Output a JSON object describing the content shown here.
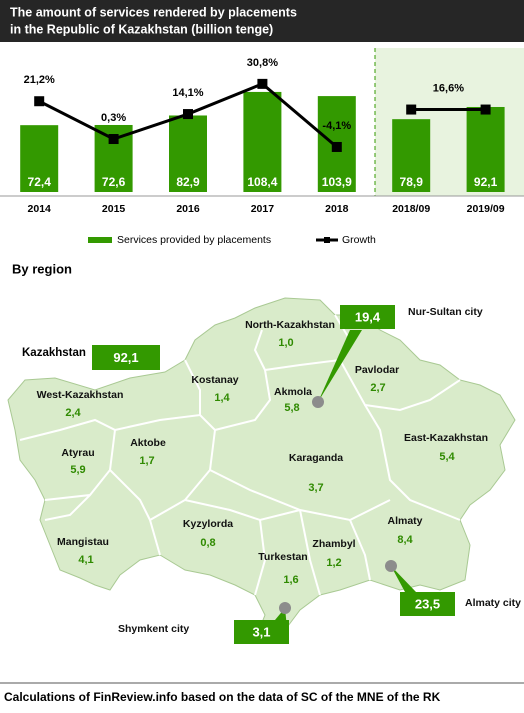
{
  "chart_data": {
    "type": "bar",
    "title": "The amount of services rendered by placements",
    "subtitle": "in the Republic of Kazakhstan (billion tenge)",
    "categories": [
      "2014",
      "2015",
      "2016",
      "2017",
      "2018",
      "2018/09",
      "2019/09"
    ],
    "ylim": [
      0,
      143
    ],
    "y2lim": [
      -29,
      44
    ],
    "series": [
      {
        "name": "Services provided by placements",
        "type": "bar",
        "color": "#339900",
        "values": [
          72.4,
          72.6,
          82.9,
          108.4,
          103.9,
          78.9,
          92.1
        ],
        "value_labels": [
          "72,4",
          "72,6",
          "82,9",
          "108,4",
          "103,9",
          "78,9",
          "92,1"
        ]
      },
      {
        "name": "Growth",
        "type": "line",
        "axis": "y2",
        "color": "#000000",
        "values": [
          21.2,
          0.3,
          14.1,
          30.8,
          -4.1,
          16.6,
          16.6
        ],
        "value_labels": [
          "21,2%",
          "0,3%",
          "14,1%",
          "30,8%",
          "-4,1%",
          null,
          "16,6%"
        ]
      }
    ]
  },
  "map": {
    "title": "By region",
    "total": {
      "name": "Kazakhstan",
      "value": "92,1"
    },
    "regions": [
      {
        "name": "North-Kazakhstan",
        "value": "1,0"
      },
      {
        "name": "Kostanay",
        "value": "1,4"
      },
      {
        "name": "Akmola",
        "value": "5,8"
      },
      {
        "name": "Pavlodar",
        "value": "2,7"
      },
      {
        "name": "West-Kazakhstan",
        "value": "2,4"
      },
      {
        "name": "Aktobe",
        "value": "1,7"
      },
      {
        "name": "Karaganda",
        "value": "3,7"
      },
      {
        "name": "East-Kazakhstan",
        "value": "5,4"
      },
      {
        "name": "Atyrau",
        "value": "5,9"
      },
      {
        "name": "Kyzylorda",
        "value": "0,8"
      },
      {
        "name": "Mangistau",
        "value": "4,1"
      },
      {
        "name": "Zhambyl",
        "value": "1,2"
      },
      {
        "name": "Almaty",
        "value": "8,4"
      },
      {
        "name": "Turkestan",
        "value": "1,6"
      }
    ],
    "cities": [
      {
        "name": "Nur-Sultan city",
        "value": "19,4"
      },
      {
        "name": "Almaty city",
        "value": "23,5"
      },
      {
        "name": "Shymkent city",
        "value": "3,1"
      }
    ]
  },
  "footer": "Calculations of FinReview.info based on the data of SC of the MNE of the RK"
}
